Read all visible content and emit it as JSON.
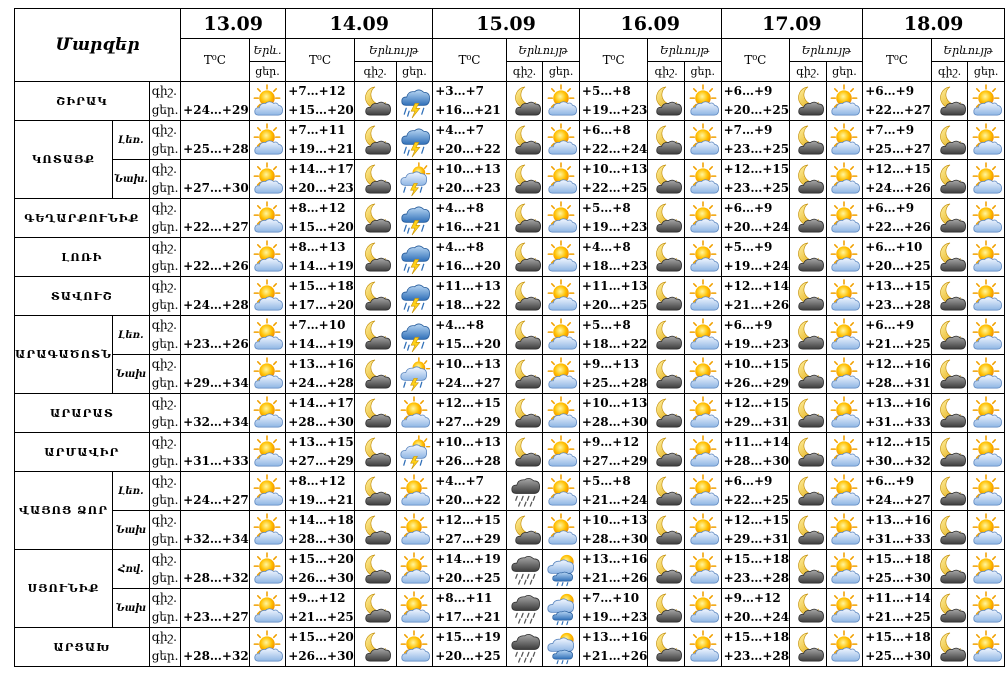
{
  "header": {
    "regions_title": "Մարզեր",
    "dates": [
      "13.09",
      "14.09",
      "15.09",
      "16.09",
      "17.09",
      "18.09"
    ],
    "temp_label": "T⁰C",
    "weather_label_short": "Երև.",
    "weather_label": "Երևույթ",
    "night_label": "գիշ.",
    "day_label": "ցեր."
  },
  "icon_names": {
    "sun": "sun-with-clouds-icon",
    "moon": "moon-with-clouds-icon",
    "thunder": "thunderstorm-icon",
    "shower": "sun-cloud-rain-thunder-icon",
    "rain": "rain-cloud-icon",
    "rainday": "rain-cloud-sun-icon"
  },
  "rows": [
    {
      "region": "ՇԻՐԱԿ",
      "sub": "",
      "t13": [
        "+24…+29"
      ],
      "d": [
        [
          "+7…+12",
          "+15…+20",
          "moon",
          "thunder"
        ],
        [
          "+3…+7",
          "+16…+21",
          "moon",
          "sun"
        ],
        [
          "+5…+8",
          "+19…+23",
          "moon",
          "sun"
        ],
        [
          "+6…+9",
          "+20…+25",
          "moon",
          "sun"
        ],
        [
          "+6…+9",
          "+22…+27",
          "moon",
          "sun"
        ]
      ]
    },
    {
      "region": "ԿՈՏԱՅՔ",
      "sub": "Լեռ.",
      "t13": [
        "+25…+28"
      ],
      "d": [
        [
          "+7…+11",
          "+19…+21",
          "moon",
          "thunder"
        ],
        [
          "+4…+7",
          "+20…+22",
          "moon",
          "sun"
        ],
        [
          "+6…+8",
          "+22…+24",
          "moon",
          "sun"
        ],
        [
          "+7…+9",
          "+23…+25",
          "moon",
          "sun"
        ],
        [
          "+7…+9",
          "+25…+27",
          "moon",
          "sun"
        ]
      ]
    },
    {
      "region": "",
      "sub": "Նախ.",
      "t13": [
        "+27…+30"
      ],
      "d": [
        [
          "+14…+17",
          "+20…+23",
          "moon",
          "shower"
        ],
        [
          "+10…+13",
          "+20…+23",
          "moon",
          "sun"
        ],
        [
          "+10…+13",
          "+22…+25",
          "moon",
          "sun"
        ],
        [
          "+12…+15",
          "+23…+25",
          "moon",
          "sun"
        ],
        [
          "+12…+15",
          "+24…+26",
          "moon",
          "sun"
        ]
      ]
    },
    {
      "region": "ԳԵՂԱՐՔՈՒՆԻՔ",
      "sub": "",
      "t13": [
        "+22…+27"
      ],
      "d": [
        [
          "+8…+12",
          "+15…+20",
          "moon",
          "thunder"
        ],
        [
          "+4…+8",
          "+16…+21",
          "moon",
          "sun"
        ],
        [
          "+5…+8",
          "+19…+23",
          "moon",
          "sun"
        ],
        [
          "+6…+9",
          "+20…+24",
          "moon",
          "sun"
        ],
        [
          "+6…+9",
          "+22…+26",
          "moon",
          "sun"
        ]
      ]
    },
    {
      "region": "ԼՈՌԻ",
      "sub": "",
      "t13": [
        "+22…+26"
      ],
      "d": [
        [
          "+8…+13",
          "+14…+19",
          "moon",
          "thunder"
        ],
        [
          "+4…+8",
          "+16…+20",
          "moon",
          "sun"
        ],
        [
          "+4…+8",
          "+18…+23",
          "moon",
          "sun"
        ],
        [
          "+5…+9",
          "+19…+24",
          "moon",
          "sun"
        ],
        [
          "+6…+10",
          "+20…+25",
          "moon",
          "sun"
        ]
      ]
    },
    {
      "region": "ՏԱՎՈՒՇ",
      "sub": "",
      "t13": [
        "+24…+28"
      ],
      "d": [
        [
          "+15…+18",
          "+17…+20",
          "moon",
          "thunder"
        ],
        [
          "+11…+13",
          "+18…+22",
          "moon",
          "sun"
        ],
        [
          "+11…+13",
          "+20…+25",
          "moon",
          "sun"
        ],
        [
          "+12…+14",
          "+21…+26",
          "moon",
          "sun"
        ],
        [
          "+13…+15",
          "+23…+28",
          "moon",
          "sun"
        ]
      ]
    },
    {
      "region": "ԱՐԱԳԱԾՈՏՆ",
      "sub": "Լեռ.",
      "t13": [
        "+23…+26"
      ],
      "d": [
        [
          "+7…+10",
          "+14…+19",
          "moon",
          "thunder"
        ],
        [
          "+4…+8",
          "+15…+20",
          "moon",
          "sun"
        ],
        [
          "+5…+8",
          "+18…+22",
          "moon",
          "sun"
        ],
        [
          "+6…+9",
          "+19…+23",
          "moon",
          "sun"
        ],
        [
          "+6…+9",
          "+21…+25",
          "moon",
          "sun"
        ]
      ]
    },
    {
      "region": "",
      "sub": "Նախ",
      "t13": [
        "+29…+34"
      ],
      "d": [
        [
          "+13…+16",
          "+24…+28",
          "moon",
          "shower"
        ],
        [
          "+10…+13",
          "+24…+27",
          "moon",
          "sun"
        ],
        [
          "+9…+13",
          "+25…+28",
          "moon",
          "sun"
        ],
        [
          "+10…+15",
          "+26…+29",
          "moon",
          "sun"
        ],
        [
          "+12…+16",
          "+28…+31",
          "moon",
          "sun"
        ]
      ]
    },
    {
      "region": "ԱՐԱՐԱՏ",
      "sub": "",
      "t13": [
        "+32…+34"
      ],
      "d": [
        [
          "+14…+17",
          "+28…+30",
          "moon",
          "sun"
        ],
        [
          "+12…+15",
          "+27…+29",
          "moon",
          "sun"
        ],
        [
          "+10…+13",
          "+28…+30",
          "moon",
          "sun"
        ],
        [
          "+12…+15",
          "+29…+31",
          "moon",
          "sun"
        ],
        [
          "+13…+16",
          "+31…+33",
          "moon",
          "sun"
        ]
      ]
    },
    {
      "region": "ԱՐՄԱՎԻՐ",
      "sub": "",
      "t13": [
        "+31…+33"
      ],
      "d": [
        [
          "+13…+15",
          "+27…+29",
          "moon",
          "shower"
        ],
        [
          "+10…+13",
          "+26…+28",
          "moon",
          "sun"
        ],
        [
          "+9…+12",
          "+27…+29",
          "moon",
          "sun"
        ],
        [
          "+11…+14",
          "+28…+30",
          "moon",
          "sun"
        ],
        [
          "+12…+15",
          "+30…+32",
          "moon",
          "sun"
        ]
      ]
    },
    {
      "region": "ՎԱՅՈՑ ՁՈՐ",
      "sub": "Լեռ.",
      "t13": [
        "+24…+27"
      ],
      "d": [
        [
          "+8…+12",
          "+19…+21",
          "moon",
          "sun"
        ],
        [
          "+4…+7",
          "+20…+22",
          "rain",
          "sun"
        ],
        [
          "+5…+8",
          "+21…+24",
          "moon",
          "sun"
        ],
        [
          "+6…+9",
          "+22…+25",
          "moon",
          "sun"
        ],
        [
          "+6…+9",
          "+24…+27",
          "moon",
          "sun"
        ]
      ]
    },
    {
      "region": "",
      "sub": "Նախ",
      "t13": [
        "+32…+34"
      ],
      "d": [
        [
          "+14…+18",
          "+28…+30",
          "moon",
          "sun"
        ],
        [
          "+12…+15",
          "+27…+29",
          "moon",
          "sun"
        ],
        [
          "+10…+13",
          "+28…+30",
          "moon",
          "sun"
        ],
        [
          "+12…+15",
          "+29…+31",
          "moon",
          "sun"
        ],
        [
          "+13…+16",
          "+31…+33",
          "moon",
          "sun"
        ]
      ]
    },
    {
      "region": "ՍՅՈՒՆԻՔ",
      "sub": "Հով.",
      "t13": [
        "+28…+32"
      ],
      "d": [
        [
          "+15…+20",
          "+26…+30",
          "moon",
          "sun"
        ],
        [
          "+14…+19",
          "+20…+25",
          "rain",
          "rainday"
        ],
        [
          "+13…+16",
          "+21…+26",
          "moon",
          "sun"
        ],
        [
          "+15…+18",
          "+23…+28",
          "moon",
          "sun"
        ],
        [
          "+15…+18",
          "+25…+30",
          "moon",
          "sun"
        ]
      ]
    },
    {
      "region": "",
      "sub": "Նախ",
      "t13": [
        "+23…+27"
      ],
      "d": [
        [
          "+9…+12",
          "+21…+25",
          "moon",
          "sun"
        ],
        [
          "+8…+11",
          "+17…+21",
          "rain",
          "rainday"
        ],
        [
          "+7…+10",
          "+19…+23",
          "moon",
          "sun"
        ],
        [
          "+9…+12",
          "+20…+24",
          "moon",
          "sun"
        ],
        [
          "+11…+14",
          "+21…+25",
          "moon",
          "sun"
        ]
      ]
    },
    {
      "region": "ԱՐՑԱԽ",
      "sub": "",
      "t13": [
        "+28…+32"
      ],
      "d": [
        [
          "+15…+20",
          "+26…+30",
          "moon",
          "sun"
        ],
        [
          "+15…+19",
          "+20…+25",
          "rain",
          "rainday"
        ],
        [
          "+13…+16",
          "+21…+26",
          "moon",
          "sun"
        ],
        [
          "+15…+18",
          "+23…+28",
          "moon",
          "sun"
        ],
        [
          "+15…+18",
          "+25…+30",
          "moon",
          "sun"
        ]
      ]
    }
  ]
}
